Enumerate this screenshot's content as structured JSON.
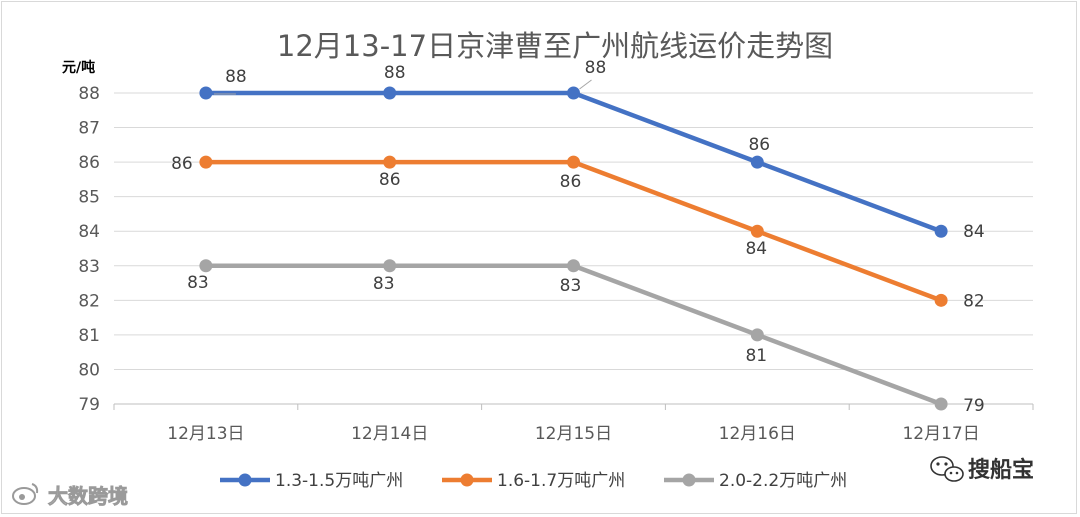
{
  "chart_data": {
    "type": "line",
    "title": "12月13-17日京津曹至广州航线运价走势图",
    "ylabel": "元/吨",
    "categories": [
      "12月13日",
      "12月14日",
      "12月15日",
      "12月16日",
      "12月17日"
    ],
    "yticks": [
      88,
      87,
      86,
      85,
      84,
      83,
      82,
      81,
      80,
      79
    ],
    "ylim": [
      79,
      88
    ],
    "grid": true,
    "legend_position": "bottom",
    "series": [
      {
        "name": "1.3-1.5万吨广州",
        "values": [
          88,
          88,
          88,
          86,
          84
        ],
        "color": "#4472c4"
      },
      {
        "name": "1.6-1.7万吨广州",
        "values": [
          86,
          86,
          86,
          84,
          82
        ],
        "color": "#ed7d31"
      },
      {
        "name": "2.0-2.2万吨广州",
        "values": [
          83,
          83,
          83,
          81,
          79
        ],
        "color": "#a5a5a5"
      }
    ]
  },
  "watermarks": {
    "left": "大数跨境",
    "right": "搜船宝",
    "left_icon": "weibo-icon",
    "right_icon": "wechat-icon"
  }
}
